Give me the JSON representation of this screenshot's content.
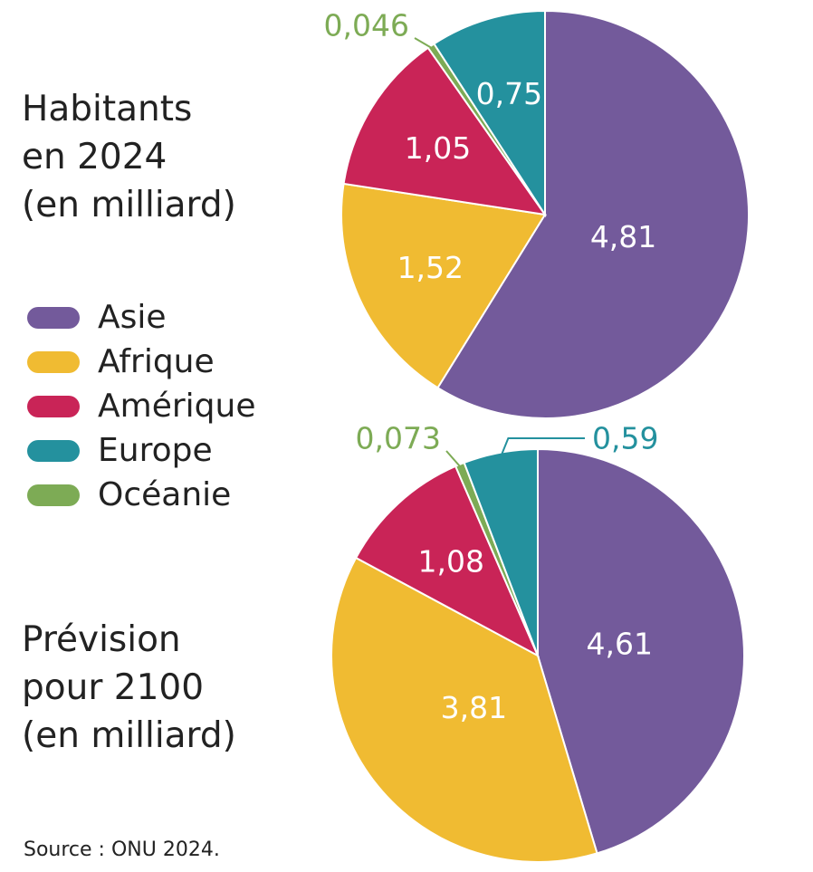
{
  "chart_data": [
    {
      "type": "pie",
      "title_lines": [
        "Habitants",
        "en 2024",
        "(en milliard)"
      ],
      "slices": [
        {
          "category": "Asie",
          "value": 4.81,
          "label": "4,81",
          "color": "#735a9b"
        },
        {
          "category": "Afrique",
          "value": 1.52,
          "label": "1,52",
          "color": "#f0bb32"
        },
        {
          "category": "Amérique",
          "value": 1.05,
          "label": "1,05",
          "color": "#c92457"
        },
        {
          "category": "Océanie",
          "value": 0.046,
          "label": "0,046",
          "color": "#7dab55"
        },
        {
          "category": "Europe",
          "value": 0.75,
          "label": "0,75",
          "color": "#24919e"
        }
      ]
    },
    {
      "type": "pie",
      "title_lines": [
        "Prévision",
        "pour 2100",
        "(en milliard)"
      ],
      "slices": [
        {
          "category": "Asie",
          "value": 4.61,
          "label": "4,61",
          "color": "#735a9b"
        },
        {
          "category": "Afrique",
          "value": 3.81,
          "label": "3,81",
          "color": "#f0bb32"
        },
        {
          "category": "Amérique",
          "value": 1.08,
          "label": "1,08",
          "color": "#c92457"
        },
        {
          "category": "Océanie",
          "value": 0.073,
          "label": "0,073",
          "color": "#7dab55"
        },
        {
          "category": "Europe",
          "value": 0.59,
          "label": "0,59",
          "color": "#24919e"
        }
      ]
    }
  ],
  "legend": [
    {
      "label": "Asie",
      "color": "#735a9b"
    },
    {
      "label": "Afrique",
      "color": "#f0bb32"
    },
    {
      "label": "Amérique",
      "color": "#c92457"
    },
    {
      "label": "Europe",
      "color": "#24919e"
    },
    {
      "label": "Océanie",
      "color": "#7dab55"
    }
  ],
  "source": "Source : ONU 2024."
}
